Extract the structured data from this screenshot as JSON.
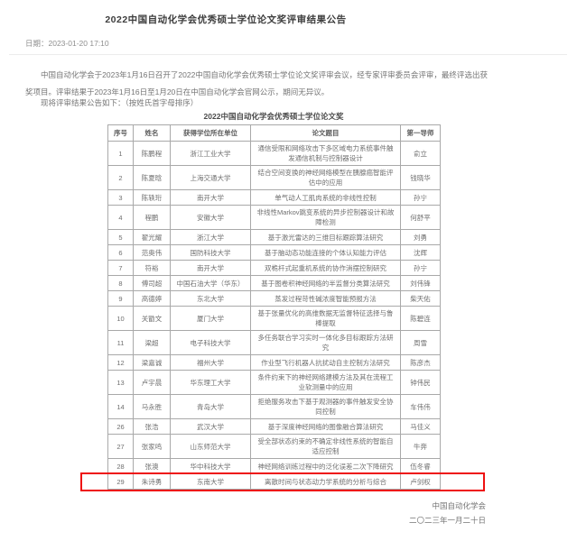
{
  "page": {
    "title": "2022中国自动化学会优秀硕士学位论文奖评审结果公告",
    "date_line": "日期：2023-01-20 17:10",
    "intro": "中国自动化学会于2023年1月16日召开了2022中国自动化学会优秀硕士学位论文奖评审会议，经专家评审委员会评审，最终评选出获奖项目。评审结果于2023年1月16日至1月20日在中国自动化学会官网公示，期间无异议。",
    "announce": "现将评审结果公告如下：（按姓氏首字母排序）",
    "signature": "中国自动化学会",
    "signature_date": "二〇二三年一月二十日"
  },
  "table": {
    "caption": "2022中国自动化学会优秀硕士学位论文奖",
    "headers": [
      "序号",
      "姓名",
      "获得学位所在单位",
      "论文题目",
      "第一导师"
    ],
    "highlighted_row_no": "29",
    "rows": [
      {
        "no": "1",
        "name": "陈鹏程",
        "university": "浙江工业大学",
        "title": "通信受限和网络攻击下多区域电力系统事件触发通信机制与控制器设计",
        "advisor": "俞立"
      },
      {
        "no": "2",
        "name": "陈夏晗",
        "university": "上海交通大学",
        "title": "结合空间变换的神经网络模型在胰腺癌智能评估中的应用",
        "advisor": "钱晓华"
      },
      {
        "no": "3",
        "name": "陈轶珩",
        "university": "南开大学",
        "title": "单气动人工肌肉系统的非线性控制",
        "advisor": "孙宁"
      },
      {
        "no": "4",
        "name": "程鹏",
        "university": "安徽大学",
        "title": "非线性Markov跳变系统的异步控制器设计和故障检测",
        "advisor": "何舒平"
      },
      {
        "no": "5",
        "name": "翟光耀",
        "university": "浙江大学",
        "title": "基于激光雷达的三维目标跟踪算法研究",
        "advisor": "刘勇"
      },
      {
        "no": "6",
        "name": "范奥伟",
        "university": "国防科技大学",
        "title": "基于脑动态功能连接的个体认知能力评估",
        "advisor": "沈辉"
      },
      {
        "no": "7",
        "name": "符裕",
        "university": "南开大学",
        "title": "双桅杆式起重机系统的协作消摆控制研究",
        "advisor": "孙宁"
      },
      {
        "no": "8",
        "name": "傅司超",
        "university": "中国石油大学（华东）",
        "title": "基于图卷积神经网络的半监督分类算法研究",
        "advisor": "刘伟锋"
      },
      {
        "no": "9",
        "name": "高德婷",
        "university": "东北大学",
        "title": "蒸发过程苛性碱浓度智能预报方法",
        "advisor": "柴天佑"
      },
      {
        "no": "10",
        "name": "关勖文",
        "university": "厦门大学",
        "title": "基于张量优化的高维数据无监督特征选择与鲁棒提取",
        "advisor": "陈碧连"
      },
      {
        "no": "11",
        "name": "梁超",
        "university": "电子科技大学",
        "title": "多任务联合学习实时一体化多目标跟踪方法研究",
        "advisor": "周雪"
      },
      {
        "no": "12",
        "name": "梁嘉诚",
        "university": "福州大学",
        "title": "作业型飞行机器人抗扰动自主控制方法研究",
        "advisor": "陈彦杰"
      },
      {
        "no": "13",
        "name": "卢宇晨",
        "university": "华东理工大学",
        "title": "条件约束下的神经网络建模方法及其在流程工业软测量中的应用",
        "advisor": "钟伟民"
      },
      {
        "no": "14",
        "name": "马永胜",
        "university": "青岛大学",
        "title": "拒绝服务攻击下基于观测器的事件触发安全协同控制",
        "advisor": "车伟伟"
      },
      {
        "no": "26",
        "name": "张浩",
        "university": "武汉大学",
        "title": "基于深度神经网络的图像融合算法研究",
        "advisor": "马佳义"
      },
      {
        "no": "27",
        "name": "张家鸣",
        "university": "山东师范大学",
        "title": "受全部状态约束的不确定非线性系统的智能自适应控制",
        "advisor": "牛奔"
      },
      {
        "no": "28",
        "name": "张澳",
        "university": "华中科技大学",
        "title": "神经网络训练过程中的泛化误差二次下降研究",
        "advisor": "伍冬睿"
      },
      {
        "no": "29",
        "name": "朱诗勇",
        "university": "东南大学",
        "title": "离散时间与状态动力学系统的分析与综合",
        "advisor": "卢剑权"
      }
    ]
  },
  "colors": {
    "highlight_box": "#ee1111",
    "body_text": "#757575",
    "table_border": "#a9a9a9"
  }
}
